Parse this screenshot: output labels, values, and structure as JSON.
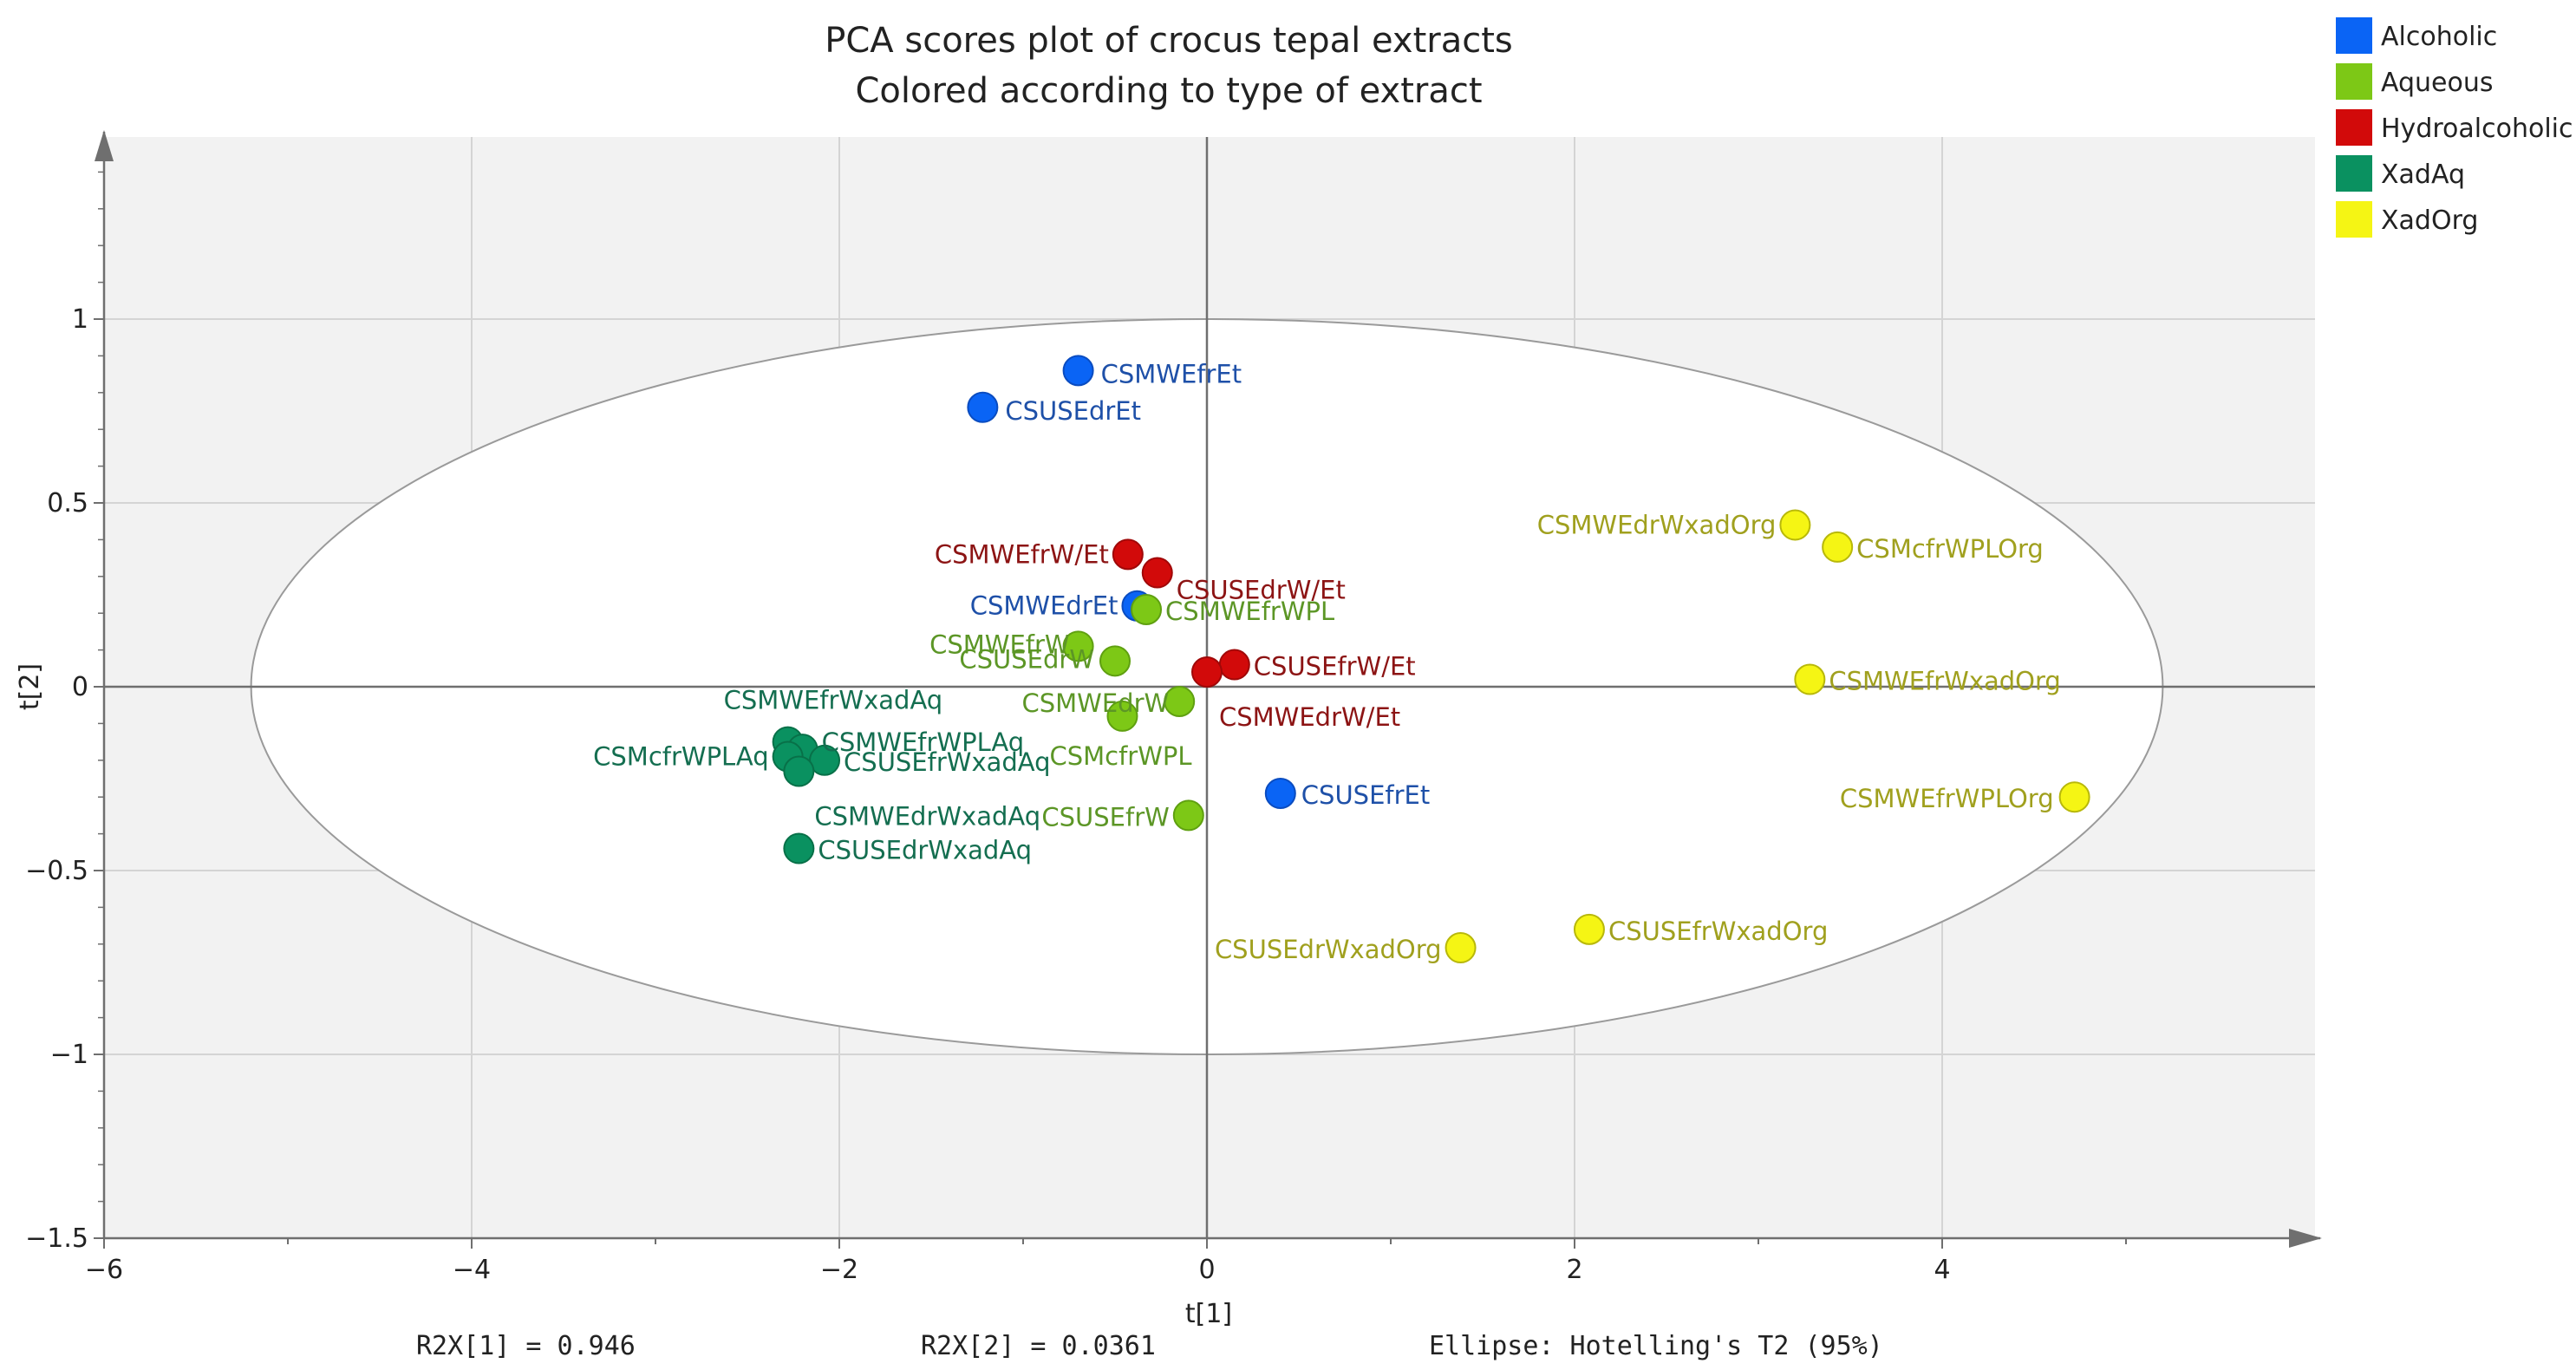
{
  "chart_data": {
    "type": "scatter",
    "title": [
      "PCA scores plot of crocus tepal extracts",
      "Colored according to type of extract"
    ],
    "xlabel": "t[1]",
    "ylabel": "t[2]",
    "xlim": [
      -6,
      6
    ],
    "ylim": [
      -1.5,
      1.5
    ],
    "x_ticks": [
      -6,
      -4,
      -2,
      0,
      2,
      4
    ],
    "x_tick_labels": [
      "−6",
      "−4",
      "−2",
      "0",
      "2",
      "4"
    ],
    "y_ticks": [
      -1.5,
      -1,
      -0.5,
      0,
      0.5,
      1
    ],
    "y_tick_labels": [
      "−1.5",
      "−1",
      "−0.5",
      "0",
      "0.5",
      "1"
    ],
    "grid": true,
    "legend_position": "top-right",
    "ellipse": {
      "cx": 0,
      "cy": 0,
      "rx": 5.2,
      "ry": 1.0
    },
    "series": [
      {
        "name": "Alcoholic",
        "color": "#0a64f5",
        "label_color": "#1e50a8",
        "points": [
          {
            "x": -0.7,
            "y": 0.86,
            "label": "CSMWEfrEt"
          },
          {
            "x": -1.22,
            "y": 0.76,
            "label": "CSUSEdrEt"
          },
          {
            "x": -0.38,
            "y": 0.22,
            "label": "CSMWEdrEt"
          },
          {
            "x": 0.4,
            "y": -0.29,
            "label": "CSUSEfrEt"
          }
        ]
      },
      {
        "name": "Aqueous",
        "color": "#7dc816",
        "label_color": "#5c9626",
        "points": [
          {
            "x": -0.33,
            "y": 0.21,
            "label": "CSMWEfrWPL"
          },
          {
            "x": -0.7,
            "y": 0.11,
            "label": "CSMWEfrW"
          },
          {
            "x": -0.5,
            "y": 0.07,
            "label": "CSUSEdrW"
          },
          {
            "x": -0.15,
            "y": -0.04,
            "label": "CSMWEdrW"
          },
          {
            "x": -0.46,
            "y": -0.08,
            "label": "CSMcfrWPL"
          },
          {
            "x": -0.1,
            "y": -0.35,
            "label": "CSUSEfrW"
          }
        ]
      },
      {
        "name": "Hydroalcoholic",
        "color": "#d20a0a",
        "label_color": "#8c1414",
        "points": [
          {
            "x": -0.43,
            "y": 0.36,
            "label": "CSMWEfrW/Et"
          },
          {
            "x": -0.27,
            "y": 0.31,
            "label": "CSUSEdrW/Et"
          },
          {
            "x": 0.15,
            "y": 0.06,
            "label": "CSUSEfrW/Et"
          },
          {
            "x": 0.0,
            "y": 0.04,
            "label": "CSMWEdrW/Et"
          }
        ]
      },
      {
        "name": "XadAq",
        "color": "#0a9160",
        "label_color": "#146e50",
        "points": [
          {
            "x": -2.28,
            "y": -0.15,
            "label": "CSMWEfrWxadAq"
          },
          {
            "x": -2.2,
            "y": -0.17,
            "label": "CSMWEfrWPLAq"
          },
          {
            "x": -2.28,
            "y": -0.19,
            "label": "CSMcfrWPLAq"
          },
          {
            "x": -2.08,
            "y": -0.2,
            "label": "CSUSEfrWxadAq"
          },
          {
            "x": -2.22,
            "y": -0.23,
            "label": "CSMWEdrWxadAq"
          },
          {
            "x": -2.22,
            "y": -0.44,
            "label": "CSUSEdrWxadAq"
          }
        ]
      },
      {
        "name": "XadOrg",
        "color": "#f5f514",
        "label_color": "#a0a01e",
        "points": [
          {
            "x": 3.2,
            "y": 0.44,
            "label": "CSMWEdrWxadOrg"
          },
          {
            "x": 3.43,
            "y": 0.38,
            "label": "CSMcfrWPLOrg"
          },
          {
            "x": 3.28,
            "y": 0.02,
            "label": "CSMWEfrWxadOrg"
          },
          {
            "x": 4.72,
            "y": -0.3,
            "label": "CSMWEfrWPLOrg"
          },
          {
            "x": 2.08,
            "y": -0.66,
            "label": "CSUSEfrWxadOrg"
          },
          {
            "x": 1.38,
            "y": -0.71,
            "label": "CSUSEdrWxadOrg"
          }
        ]
      }
    ],
    "footer": [
      "R2X[1] = 0.946",
      "R2X[2] = 0.0361",
      "Ellipse: Hotelling's T2 (95%)"
    ]
  }
}
